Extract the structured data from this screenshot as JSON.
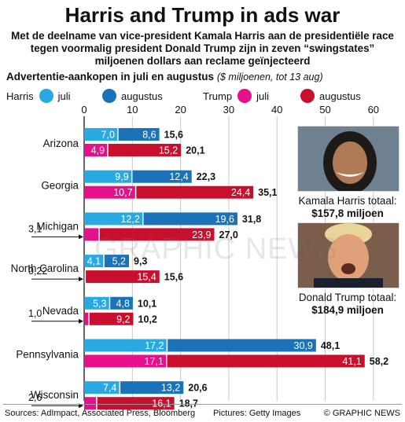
{
  "title": "Harris and Trump in ads war",
  "subtitle": "Met de deelname van vice-president Kamala Harris aan de presidentiële race tegen voormalig president Donald Trump zijn  in zeven “swingstates” miljoenen dollars aan reclame geïnjecteerd",
  "section_title": "Advertentie-aankopen in juli en augustus",
  "section_note": "($ miljoenen, tot 13 aug)",
  "legend": {
    "harris": "Harris",
    "trump": "Trump",
    "juli": "juli",
    "augustus": "augustus"
  },
  "colors": {
    "harris_juli": "#29a9e1",
    "harris_augustus": "#1a72b9",
    "trump_juli": "#e6118a",
    "trump_augustus": "#c8102e"
  },
  "chart_data": {
    "type": "bar",
    "orientation": "horizontal",
    "stacked": true,
    "xlim": [
      0,
      60
    ],
    "xticks": [
      0,
      10,
      20,
      30,
      40,
      50,
      60
    ],
    "categories": [
      "Arizona",
      "Georgia",
      "Michigan",
      "North Carolina",
      "Nevada",
      "Pennsylvania",
      "Wisconsin"
    ],
    "harris_juli": [
      "7,0",
      "9,9",
      "12,2",
      "4,1",
      "5,3",
      "17,2",
      "7,4"
    ],
    "harris_augustus": [
      "8,6",
      "12,4",
      "19,6",
      "5,2",
      "4,8",
      "30,9",
      "13,2"
    ],
    "harris_total": [
      "15,6",
      "22,3",
      "31,8",
      "9,3",
      "10,1",
      "48,1",
      "20,6"
    ],
    "trump_juli": [
      "4,9",
      "10,7",
      "3,1",
      "0,22",
      "1,0",
      "17,1",
      "2,6"
    ],
    "trump_augustus": [
      "15,2",
      "24,4",
      "23,9",
      "15,4",
      "9,2",
      "41,1",
      "16,1"
    ],
    "trump_total": [
      "20,1",
      "35,1",
      "27,0",
      "15,6",
      "10,2",
      "58,2",
      "18,7"
    ],
    "trump_juli_outside": [
      false,
      false,
      true,
      true,
      true,
      false,
      true
    ]
  },
  "harris_photo_caption": "Kamala Harris totaal:",
  "harris_total": "$157,8 miljoen",
  "trump_photo_caption": "Donald Trump totaal:",
  "trump_total": "$184,9 miljoen",
  "footer": {
    "sources": "Sources: AdImpact, Associated Press, Bloomberg",
    "pictures": "Pictures: Getty Images",
    "credit": "© GRAPHIC NEWS"
  },
  "watermark": "GRAPHIC NEWS"
}
